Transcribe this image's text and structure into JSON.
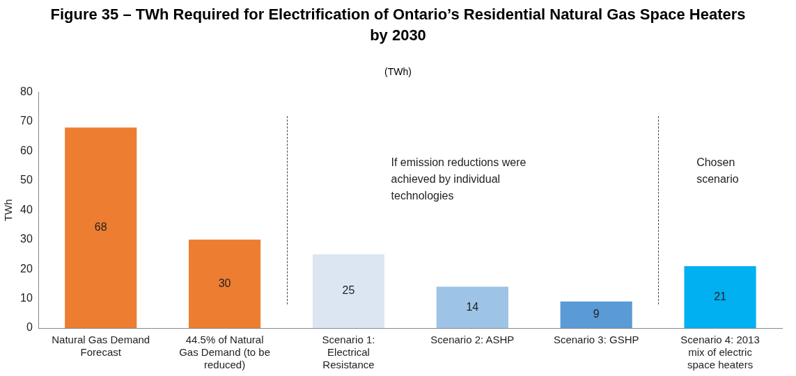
{
  "chart_data": {
    "type": "bar",
    "title": "Figure 35 – TWh Required for Electrification of Ontario’s Residential Natural Gas Space Heaters by 2030",
    "subtitle": "(TWh)",
    "ylabel": "TWh",
    "categories": [
      "Natural Gas Demand Forecast",
      "44.5% of Natural Gas Demand (to be reduced)",
      "Scenario 1: Electrical Resistance",
      "Scenario 2: ASHP",
      "Scenario 3: GSHP",
      "Scenario 4: 2013 mix of electric space heaters"
    ],
    "values": [
      68,
      30,
      25,
      14,
      9,
      21
    ],
    "colors": [
      "#ed7d31",
      "#ed7d31",
      "#dce6f2",
      "#9dc3e6",
      "#5b9bd5",
      "#00b0f0"
    ],
    "ylim": [
      0,
      80
    ],
    "yticks": [
      0,
      10,
      20,
      30,
      40,
      50,
      60,
      70,
      80
    ],
    "grid": false,
    "legend": false,
    "data_labels": true,
    "annotations": [
      "If emission reductions were achieved by individual technologies",
      "Chosen scenario"
    ]
  }
}
